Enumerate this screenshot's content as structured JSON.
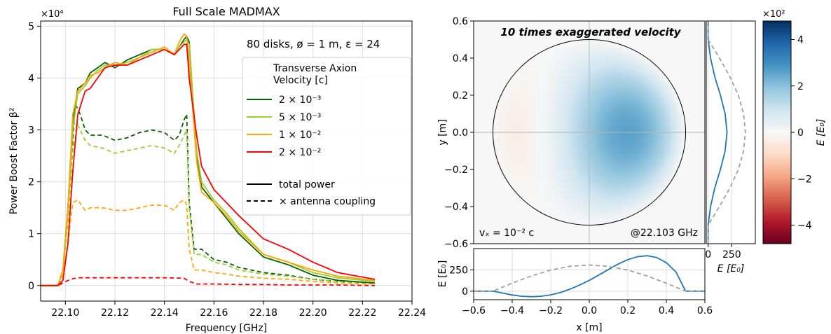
{
  "chart_data": [
    {
      "type": "line",
      "title": "Full Scale MADMAX",
      "xlabel": "Frequency [GHz]",
      "ylabel": "Power Boost Factor β²",
      "y_multiplier": "×10⁴",
      "xlim": [
        22.09,
        22.24
      ],
      "ylim": [
        -0.3,
        5.1
      ],
      "xticks": [
        "22.10",
        "22.12",
        "22.14",
        "22.16",
        "22.18",
        "22.20",
        "22.22",
        "22.24"
      ],
      "yticks": [
        "0",
        "1",
        "2",
        "3",
        "4",
        "5"
      ],
      "grid": true,
      "annotation": "80 disks, ø = 1 m, ε = 24",
      "legend": {
        "position": "right",
        "title_line1": "Transverse Axion",
        "title_line2": "Velocity [c]",
        "style_total": "total power",
        "style_antenna": "× antenna coupling"
      },
      "series": [
        {
          "name": "2 × 10⁻³",
          "color": "#006400",
          "total": {
            "x": [
              22.089,
              22.097,
              22.099,
              22.101,
              22.103,
              22.105,
              22.108,
              22.11,
              22.113,
              22.116,
              22.12,
              22.125,
              22.13,
              22.135,
              22.14,
              22.144,
              22.146,
              22.148,
              22.149,
              22.15,
              22.153,
              22.155,
              22.16,
              22.165,
              22.17,
              22.18,
              22.19,
              22.2,
              22.21,
              22.225
            ],
            "y": [
              0,
              0,
              0.3,
              1.5,
              3.2,
              3.8,
              3.9,
              4.1,
              4.2,
              4.3,
              4.2,
              4.35,
              4.45,
              4.55,
              4.55,
              4.45,
              4.6,
              4.75,
              4.8,
              4.7,
              2.5,
              1.9,
              1.6,
              1.3,
              1.0,
              0.55,
              0.4,
              0.2,
              0.1,
              0.05
            ]
          },
          "antenna": {
            "x": [
              22.089,
              22.097,
              22.099,
              22.101,
              22.103,
              22.104,
              22.106,
              22.108,
              22.11,
              22.115,
              22.12,
              22.125,
              22.13,
              22.135,
              22.14,
              22.144,
              22.146,
              22.148,
              22.149,
              22.15,
              22.152,
              22.155,
              22.16,
              22.165,
              22.17,
              22.18,
              22.19,
              22.2,
              22.21,
              22.225
            ],
            "y": [
              0,
              0,
              0.3,
              1.3,
              2.8,
              3.5,
              3.3,
              3.0,
              2.9,
              2.9,
              2.8,
              2.85,
              2.95,
              3.0,
              2.95,
              2.8,
              2.9,
              3.2,
              3.3,
              1.6,
              0.7,
              0.7,
              0.5,
              0.45,
              0.35,
              0.25,
              0.2,
              0.12,
              0.08,
              0.05
            ]
          }
        },
        {
          "name": "5 × 10⁻³",
          "color": "#9acd32",
          "total": {
            "x": [
              22.089,
              22.097,
              22.099,
              22.101,
              22.103,
              22.105,
              22.108,
              22.11,
              22.113,
              22.116,
              22.12,
              22.125,
              22.13,
              22.135,
              22.14,
              22.144,
              22.146,
              22.148,
              22.149,
              22.15,
              22.153,
              22.155,
              22.16,
              22.165,
              22.17,
              22.18,
              22.19,
              22.2,
              22.21,
              22.225
            ],
            "y": [
              0,
              0,
              0.3,
              1.4,
              3.0,
              3.7,
              3.85,
              4.0,
              4.15,
              4.25,
              4.25,
              4.3,
              4.4,
              4.55,
              4.55,
              4.45,
              4.6,
              4.7,
              4.75,
              4.65,
              2.6,
              2.0,
              1.65,
              1.4,
              1.1,
              0.6,
              0.45,
              0.25,
              0.15,
              0.08
            ]
          },
          "antenna": {
            "x": [
              22.089,
              22.097,
              22.099,
              22.101,
              22.103,
              22.105,
              22.108,
              22.11,
              22.115,
              22.12,
              22.125,
              22.13,
              22.135,
              22.14,
              22.144,
              22.146,
              22.148,
              22.149,
              22.15,
              22.152,
              22.155,
              22.16,
              22.165,
              22.17,
              22.18,
              22.19,
              22.2,
              22.21,
              22.225
            ],
            "y": [
              0,
              0,
              0.3,
              1.2,
              2.6,
              3.1,
              2.8,
              2.7,
              2.65,
              2.55,
              2.6,
              2.65,
              2.7,
              2.65,
              2.55,
              2.7,
              2.9,
              3.0,
              1.5,
              0.6,
              0.6,
              0.45,
              0.4,
              0.3,
              0.22,
              0.18,
              0.12,
              0.08,
              0.05
            ]
          }
        },
        {
          "name": "1 × 10⁻²",
          "color": "#ffa500",
          "total": {
            "x": [
              22.089,
              22.097,
              22.099,
              22.101,
              22.103,
              22.105,
              22.108,
              22.11,
              22.113,
              22.116,
              22.12,
              22.125,
              22.13,
              22.135,
              22.14,
              22.144,
              22.146,
              22.148,
              22.149,
              22.15,
              22.153,
              22.155,
              22.16,
              22.165,
              22.17,
              22.18,
              22.19,
              22.2,
              22.21,
              22.225
            ],
            "y": [
              0,
              0,
              0.3,
              1.5,
              3.3,
              3.75,
              3.9,
              4.05,
              4.1,
              4.2,
              4.3,
              4.25,
              4.4,
              4.5,
              4.6,
              4.45,
              4.7,
              4.85,
              4.8,
              4.3,
              2.4,
              1.8,
              1.6,
              1.35,
              1.05,
              0.6,
              0.45,
              0.3,
              0.18,
              0.1
            ]
          },
          "antenna": {
            "x": [
              22.089,
              22.097,
              22.099,
              22.101,
              22.103,
              22.105,
              22.108,
              22.11,
              22.115,
              22.12,
              22.125,
              22.13,
              22.135,
              22.14,
              22.144,
              22.146,
              22.148,
              22.149,
              22.15,
              22.152,
              22.155,
              22.16,
              22.165,
              22.17,
              22.18,
              22.19,
              22.2,
              22.21,
              22.225
            ],
            "y": [
              0,
              0,
              0.2,
              0.8,
              1.6,
              1.65,
              1.45,
              1.5,
              1.5,
              1.45,
              1.45,
              1.5,
              1.55,
              1.55,
              1.45,
              1.6,
              1.65,
              1.55,
              0.7,
              0.3,
              0.3,
              0.25,
              0.22,
              0.18,
              0.14,
              0.12,
              0.08,
              0.05,
              0.03
            ]
          }
        },
        {
          "name": "2 × 10⁻²",
          "color": "#ff0000",
          "total": {
            "x": [
              22.089,
              22.097,
              22.099,
              22.101,
              22.103,
              22.105,
              22.108,
              22.11,
              22.113,
              22.116,
              22.12,
              22.125,
              22.13,
              22.135,
              22.14,
              22.144,
              22.146,
              22.148,
              22.149,
              22.15,
              22.153,
              22.155,
              22.16,
              22.165,
              22.17,
              22.18,
              22.19,
              22.2,
              22.21,
              22.225
            ],
            "y": [
              0,
              0,
              0.1,
              0.8,
              2.2,
              3.3,
              3.75,
              3.8,
              4.0,
              4.2,
              4.25,
              4.25,
              4.35,
              4.45,
              4.55,
              4.45,
              4.55,
              4.65,
              4.65,
              4.0,
              2.9,
              2.3,
              1.85,
              1.6,
              1.35,
              0.9,
              0.7,
              0.45,
              0.25,
              0.12
            ]
          },
          "antenna": {
            "x": [
              22.089,
              22.097,
              22.099,
              22.102,
              22.105,
              22.11,
              22.12,
              22.13,
              22.14,
              22.148,
              22.15,
              22.153,
              22.16,
              22.17,
              22.18,
              22.19,
              22.2,
              22.21,
              22.225
            ],
            "y": [
              0,
              0,
              0.05,
              0.12,
              0.15,
              0.15,
              0.15,
              0.15,
              0.15,
              0.14,
              0.08,
              0.03,
              0.03,
              0.02,
              0.02,
              0.01,
              0.01,
              0.01,
              0.0
            ]
          }
        }
      ]
    },
    {
      "type": "heatmap",
      "title": "10 times exaggerated velocity",
      "xlabel": "x [m]",
      "ylabel": "y [m]",
      "xlim": [
        -0.6,
        0.6
      ],
      "ylim": [
        -0.6,
        0.6
      ],
      "ticks": [
        "−0.6",
        "−0.4",
        "−0.2",
        "0.0",
        "0.2",
        "0.4",
        "0.6"
      ],
      "disk_radius": 0.5,
      "annotation_left": "vₓ = 10⁻² c",
      "annotation_right": "@22.103 GHz",
      "colormap": "RdBu",
      "field_model": "E(x,y) = cos(πr/2R)·[180 + 700·x] (positive lobe centred near x = 0.21)",
      "colorbar": {
        "label": "E [E₀]",
        "multiplier": "×10²",
        "range": [
          -4.8,
          4.8
        ],
        "ticks": [
          "−4",
          "−2",
          "0",
          "2",
          "4"
        ]
      }
    },
    {
      "type": "line",
      "name": "bottom profile",
      "xlabel": "x [m]",
      "ylabel": "E [E₀]",
      "xlim": [
        -0.6,
        0.6
      ],
      "ylim": [
        -100,
        500
      ],
      "yticks": [
        "0",
        "250"
      ],
      "xticks": [
        "−0.6",
        "−0.4",
        "−0.2",
        "0.0",
        "0.2",
        "0.4",
        "0.6"
      ],
      "series": [
        {
          "style": "solid",
          "color": "#1f77b4",
          "x": [
            -0.6,
            -0.5,
            -0.45,
            -0.4,
            -0.35,
            -0.3,
            -0.25,
            -0.2,
            -0.15,
            -0.1,
            -0.05,
            0.0,
            0.05,
            0.1,
            0.15,
            0.2,
            0.25,
            0.3,
            0.35,
            0.4,
            0.45,
            0.5,
            0.6
          ],
          "y": [
            0,
            0,
            -22,
            -45,
            -60,
            -65,
            -60,
            -43,
            -15,
            24,
            72,
            127,
            190,
            255,
            318,
            370,
            405,
            416,
            395,
            335,
            225,
            0,
            0
          ]
        },
        {
          "style": "dashed",
          "color": "#a0a0a0",
          "x": [
            -0.6,
            -0.5,
            -0.4,
            -0.3,
            -0.2,
            -0.1,
            0.0,
            0.1,
            0.2,
            0.3,
            0.4,
            0.5,
            0.6
          ],
          "y": [
            0,
            0,
            94,
            179,
            248,
            292,
            307,
            292,
            248,
            179,
            94,
            0,
            0
          ]
        }
      ]
    },
    {
      "type": "line",
      "name": "side profile",
      "xlabel": "E [E₀]",
      "xlim": [
        -20,
        500
      ],
      "xticks": [
        "0",
        "250"
      ],
      "ylim": [
        -0.6,
        0.6
      ],
      "series": [
        {
          "style": "solid",
          "color": "#1f77b4",
          "y": [
            -0.6,
            -0.5,
            -0.4,
            -0.3,
            -0.2,
            -0.1,
            0.0,
            0.1,
            0.2,
            0.3,
            0.4,
            0.5,
            0.6
          ],
          "x": [
            0,
            0,
            25,
            70,
            130,
            180,
            200,
            180,
            130,
            70,
            25,
            0,
            0
          ]
        },
        {
          "style": "dashed",
          "color": "#a0a0a0",
          "y": [
            -0.6,
            -0.5,
            -0.4,
            -0.3,
            -0.2,
            -0.1,
            0.0,
            0.1,
            0.2,
            0.3,
            0.4,
            0.5,
            0.6
          ],
          "x": [
            0,
            0,
            120,
            230,
            320,
            375,
            395,
            375,
            320,
            230,
            120,
            0,
            0
          ]
        }
      ]
    }
  ]
}
